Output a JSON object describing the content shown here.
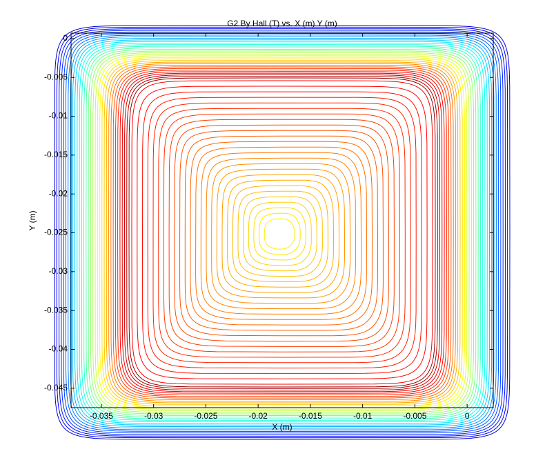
{
  "chart_data": {
    "type": "contour",
    "title": "G2 By Hall (T) vs. X (m) Y (m)",
    "x_label": "X (m)",
    "y_label": "Y (m)",
    "xlim": [
      -0.0379,
      0.0025
    ],
    "ylim": [
      -0.0475,
      0.0007
    ],
    "xticks": [
      -0.035,
      -0.03,
      -0.025,
      -0.02,
      -0.015,
      -0.01,
      -0.005,
      0
    ],
    "yticks": [
      0,
      -0.005,
      -0.01,
      -0.015,
      -0.02,
      -0.025,
      -0.03,
      -0.035,
      -0.04,
      -0.045
    ],
    "colormap": "jet"
  }
}
